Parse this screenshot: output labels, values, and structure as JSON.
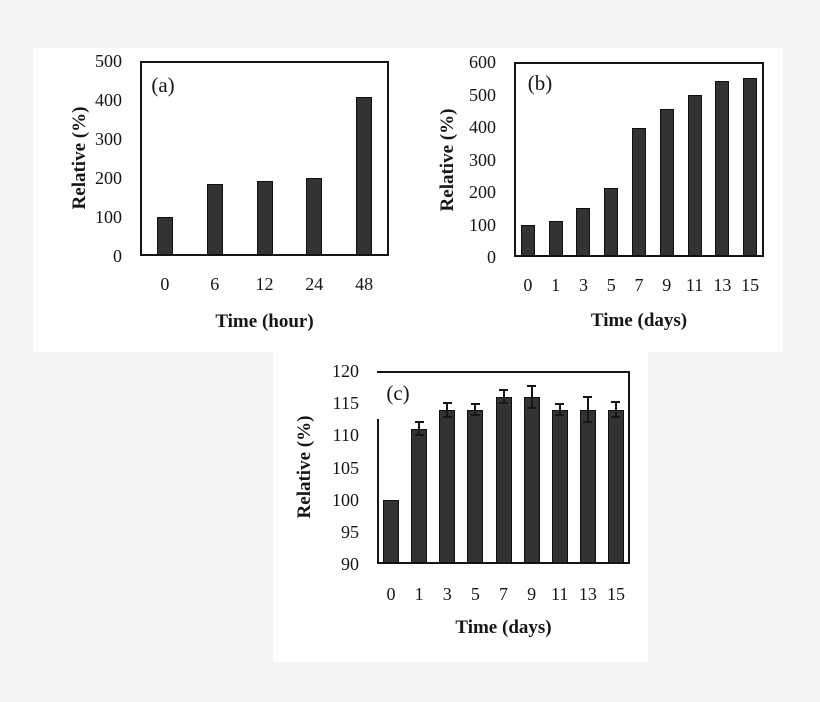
{
  "figure": {
    "background_color": "#f3f3f4",
    "panel_color": "#fefefe",
    "bar_color": "#333333",
    "bar_border_color": "#101010",
    "axis_color": "#161616",
    "text_color": "#161616"
  },
  "chart_data": [
    {
      "type": "bar",
      "panel_label": "(a)",
      "xlabel": "Time (hour)",
      "ylabel": "Relative (%)",
      "categories": [
        "0",
        "6",
        "12",
        "24",
        "48"
      ],
      "values": [
        100,
        185,
        192,
        200,
        408
      ],
      "ylim": [
        0,
        500
      ],
      "yticks": [
        0,
        100,
        200,
        300,
        400,
        500
      ],
      "grid": false,
      "legend": null
    },
    {
      "type": "bar",
      "panel_label": "(b)",
      "xlabel": "Time (days)",
      "ylabel": "Relative (%)",
      "categories": [
        "0",
        "1",
        "3",
        "5",
        "7",
        "9",
        "11",
        "13",
        "15"
      ],
      "values": [
        100,
        112,
        150,
        212,
        398,
        455,
        500,
        543,
        550
      ],
      "ylim": [
        0,
        600
      ],
      "yticks": [
        0,
        100,
        200,
        300,
        400,
        500,
        600
      ],
      "grid": false,
      "legend": null
    },
    {
      "type": "bar",
      "panel_label": "(c)",
      "xlabel": "Time (days)",
      "ylabel": "Relative (%)",
      "categories": [
        "0",
        "1",
        "3",
        "5",
        "7",
        "9",
        "11",
        "13",
        "15"
      ],
      "values": [
        100,
        111,
        114,
        114,
        116,
        116,
        114,
        114,
        114
      ],
      "errors_plus": [
        0,
        1,
        1.1,
        0.8,
        1,
        1.7,
        0.9,
        2,
        1.2
      ],
      "ylim": [
        90,
        120
      ],
      "yticks": [
        90,
        95,
        100,
        105,
        110,
        115,
        120
      ],
      "left_axis_partial_from": 112.5,
      "grid": false,
      "legend": null
    }
  ]
}
